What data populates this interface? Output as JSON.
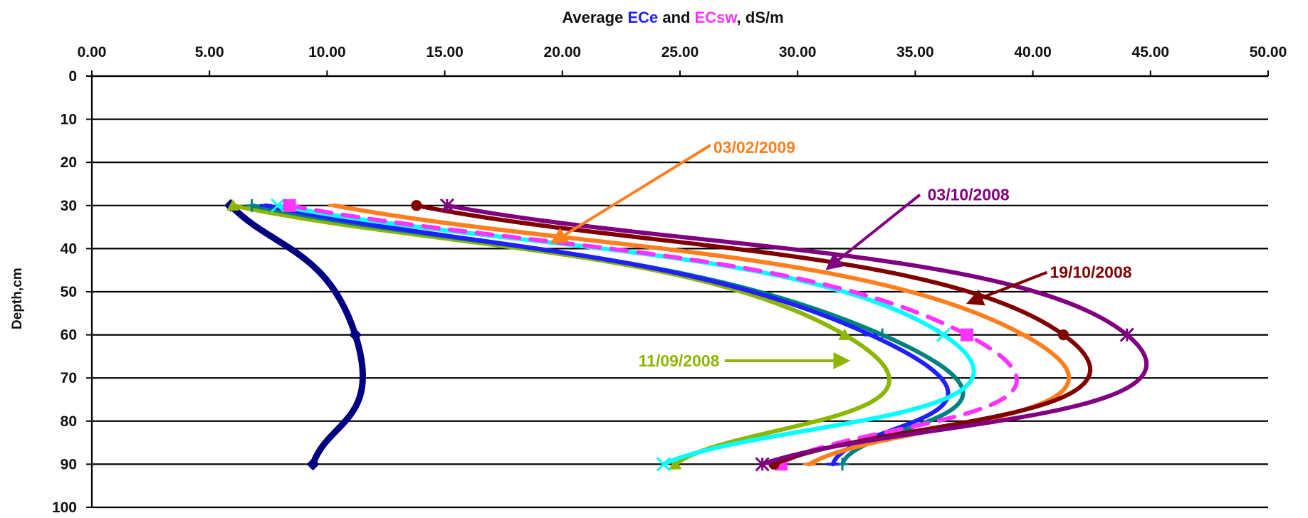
{
  "chart_data": {
    "type": "line",
    "title": {
      "parts": [
        {
          "text": "Average ",
          "color": "#111111"
        },
        {
          "text": "ECe",
          "color": "#1f1fff"
        },
        {
          "text": " and ",
          "color": "#111111"
        },
        {
          "text": "ECsw",
          "color": "#ff33ff"
        },
        {
          "text": ", dS/m",
          "color": "#111111"
        }
      ]
    },
    "xlabel": "",
    "ylabel": "Depth,cm",
    "x_axis_position": "top",
    "y_axis_reversed": true,
    "xlim": [
      0,
      50
    ],
    "ylim": [
      0,
      100
    ],
    "x_ticks": [
      "0.00",
      "5.00",
      "10.00",
      "15.00",
      "20.00",
      "25.00",
      "30.00",
      "35.00",
      "40.00",
      "45.00",
      "50.00"
    ],
    "y_ticks": [
      "0",
      "10",
      "20",
      "30",
      "40",
      "50",
      "60",
      "70",
      "80",
      "90",
      "100"
    ],
    "grid": "horizontal",
    "legend": "none",
    "series": [
      {
        "color": "#000080",
        "marker": "diamond",
        "width": 9,
        "dash": "",
        "x": [
          5.9,
          11.2,
          9.4
        ],
        "y": [
          30,
          60,
          90
        ]
      },
      {
        "color": "#8db600",
        "marker": "triangle",
        "width": 6,
        "dash": "",
        "x": [
          6.0,
          32.0,
          24.8
        ],
        "y": [
          30,
          60,
          90
        ]
      },
      {
        "color": "#008080",
        "marker": "plus",
        "width": 6,
        "dash": "",
        "x": [
          6.8,
          33.6,
          31.9
        ],
        "y": [
          30,
          60,
          90
        ]
      },
      {
        "color": "#1f1fff",
        "marker": "dash",
        "width": 6,
        "dash": "",
        "x": [
          7.4,
          33.1,
          31.5
        ],
        "y": [
          30,
          60,
          90
        ]
      },
      {
        "color": "#00ffff",
        "marker": "x",
        "width": 6,
        "dash": "",
        "x": [
          7.9,
          36.2,
          24.3
        ],
        "y": [
          30,
          60,
          90
        ]
      },
      {
        "color": "#ff33ff",
        "marker": "square",
        "width": 6,
        "dash": "22,16",
        "x": [
          8.4,
          37.2,
          29.3
        ],
        "y": [
          30,
          60,
          90
        ]
      },
      {
        "color": "#ff7f1f",
        "marker": "dash",
        "width": 6,
        "dash": "",
        "x": [
          10.3,
          39.6,
          30.5
        ],
        "y": [
          30,
          60,
          90
        ]
      },
      {
        "color": "#800000",
        "marker": "circle",
        "width": 6,
        "dash": "",
        "x": [
          13.8,
          41.3,
          29.0
        ],
        "y": [
          30,
          60,
          90
        ]
      },
      {
        "color": "#800080",
        "marker": "star",
        "width": 6,
        "dash": "",
        "x": [
          15.1,
          44.0,
          28.5
        ],
        "y": [
          30,
          60,
          90
        ]
      }
    ],
    "annotations": [
      {
        "label": "03/02/2009",
        "color": "#ff7f1f",
        "text_x": 26.3,
        "text_y": 16.5,
        "arrow_from_x": 26.3,
        "arrow_from_y": 16.0,
        "arrow_to_x": 19.6,
        "arrow_to_y": 38.5
      },
      {
        "label": "03/10/2008",
        "color": "#800080",
        "text_x": 35.4,
        "text_y": 27.5,
        "arrow_from_x": 35.2,
        "arrow_from_y": 27.5,
        "arrow_to_x": 31.3,
        "arrow_to_y": 44.5
      },
      {
        "label": "19/10/2008",
        "color": "#800000",
        "text_x": 40.6,
        "text_y": 45.5,
        "arrow_from_x": 40.6,
        "arrow_from_y": 45.5,
        "arrow_to_x": 37.3,
        "arrow_to_y": 52.5
      },
      {
        "label": "11/09/2008",
        "color": "#8db600",
        "text_x": 26.8,
        "text_y": 66.0,
        "arrow_from_x": 26.9,
        "arrow_from_y": 66.0,
        "arrow_to_x": 32.1,
        "arrow_to_y": 66.0
      }
    ]
  }
}
